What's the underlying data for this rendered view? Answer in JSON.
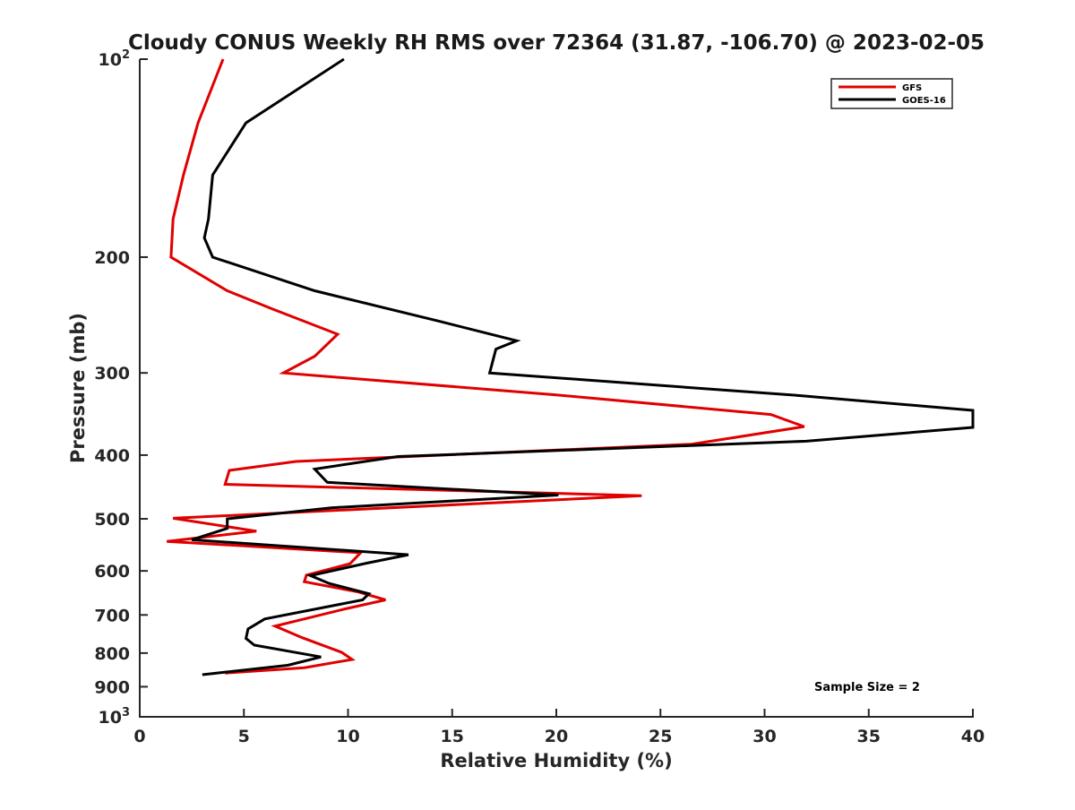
{
  "chart_data": {
    "type": "line",
    "title": "Cloudy CONUS Weekly RH RMS over 72364 (31.87, -106.70) @ 2023-02-05",
    "xlabel": "Relative Humidity (%)",
    "ylabel": "Pressure (mb)",
    "xlim": [
      0,
      40
    ],
    "ylim": [
      100,
      1000
    ],
    "yscale": "log",
    "y_reversed": true,
    "grid": false,
    "legend_position": "top-right",
    "x_ticks": [
      "0",
      "5",
      "10",
      "15",
      "20",
      "25",
      "30",
      "35",
      "40"
    ],
    "y_ticks": [
      {
        "value": 100,
        "label": "10",
        "sup": "2"
      },
      {
        "value": 200,
        "label": "200",
        "sup": ""
      },
      {
        "value": 300,
        "label": "300",
        "sup": ""
      },
      {
        "value": 400,
        "label": "400",
        "sup": ""
      },
      {
        "value": 500,
        "label": "500",
        "sup": ""
      },
      {
        "value": 600,
        "label": "600",
        "sup": ""
      },
      {
        "value": 700,
        "label": "700",
        "sup": ""
      },
      {
        "value": 800,
        "label": "800",
        "sup": ""
      },
      {
        "value": 900,
        "label": "900",
        "sup": ""
      },
      {
        "value": 1000,
        "label": "10",
        "sup": "3"
      }
    ],
    "series": [
      {
        "name": "GFS",
        "color": "#e00000",
        "points": [
          [
            4.0,
            100
          ],
          [
            2.8,
            125
          ],
          [
            2.1,
            150
          ],
          [
            1.6,
            175
          ],
          [
            1.5,
            200
          ],
          [
            4.2,
            225
          ],
          [
            6.4,
            240
          ],
          [
            9.5,
            262
          ],
          [
            8.4,
            283
          ],
          [
            6.9,
            300
          ],
          [
            20.0,
            324
          ],
          [
            30.3,
            347
          ],
          [
            31.9,
            362
          ],
          [
            26.5,
            385
          ],
          [
            7.5,
            409
          ],
          [
            4.3,
            422
          ],
          [
            4.1,
            443
          ],
          [
            24.1,
            461
          ],
          [
            1.6,
            499
          ],
          [
            5.6,
            522
          ],
          [
            1.3,
            541
          ],
          [
            10.6,
            563
          ],
          [
            10.1,
            585
          ],
          [
            8.0,
            609
          ],
          [
            7.9,
            623
          ],
          [
            10.5,
            646
          ],
          [
            11.8,
            664
          ],
          [
            9.8,
            686
          ],
          [
            6.5,
            728
          ],
          [
            7.8,
            758
          ],
          [
            9.7,
            798
          ],
          [
            10.2,
            818
          ],
          [
            7.9,
            842
          ],
          [
            4.1,
            858
          ]
        ]
      },
      {
        "name": "GOES-16",
        "color": "#000000",
        "points": [
          [
            9.8,
            100
          ],
          [
            5.1,
            125
          ],
          [
            3.5,
            150
          ],
          [
            3.3,
            175
          ],
          [
            3.1,
            187
          ],
          [
            3.5,
            200
          ],
          [
            8.4,
            225
          ],
          [
            14.3,
            250
          ],
          [
            18.1,
            268
          ],
          [
            17.1,
            276
          ],
          [
            16.8,
            300
          ],
          [
            31.8,
            325
          ],
          [
            40,
            342
          ],
          [
            40,
            363
          ],
          [
            32.0,
            381
          ],
          [
            12.4,
            402
          ],
          [
            8.4,
            420
          ],
          [
            9.0,
            440
          ],
          [
            20.1,
            460
          ],
          [
            9.2,
            481
          ],
          [
            4.2,
            500
          ],
          [
            4.2,
            517
          ],
          [
            2.5,
            538
          ],
          [
            12.9,
            567
          ],
          [
            10.9,
            584
          ],
          [
            8.2,
            610
          ],
          [
            9.1,
            627
          ],
          [
            11.0,
            650
          ],
          [
            10.7,
            664
          ],
          [
            6.0,
            710
          ],
          [
            5.2,
            735
          ],
          [
            5.1,
            760
          ],
          [
            5.5,
            778
          ],
          [
            8.7,
            811
          ],
          [
            7.1,
            835
          ],
          [
            3.0,
            863
          ]
        ]
      }
    ],
    "annotation": "Sample Size = 2"
  }
}
